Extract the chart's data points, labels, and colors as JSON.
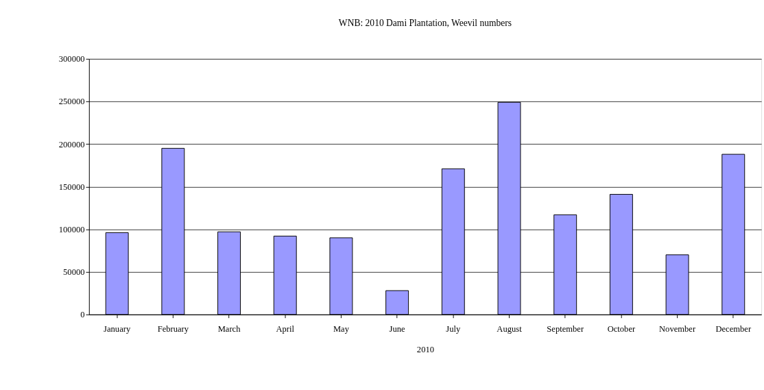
{
  "chart_data": {
    "type": "bar",
    "title": "WNB: 2010 Dami Plantation, Weevil numbers",
    "xlabel": "2010",
    "categories": [
      "January",
      "February",
      "March",
      "April",
      "May",
      "June",
      "July",
      "August",
      "September",
      "October",
      "November",
      "December"
    ],
    "values": [
      96000,
      195000,
      97000,
      92000,
      90000,
      28000,
      171000,
      249000,
      117000,
      141000,
      70000,
      188000
    ],
    "color": "#9999ff",
    "ylim": [
      0,
      300000
    ],
    "yticks": [
      0,
      50000,
      100000,
      150000,
      200000,
      250000,
      300000
    ],
    "grid": "y"
  }
}
